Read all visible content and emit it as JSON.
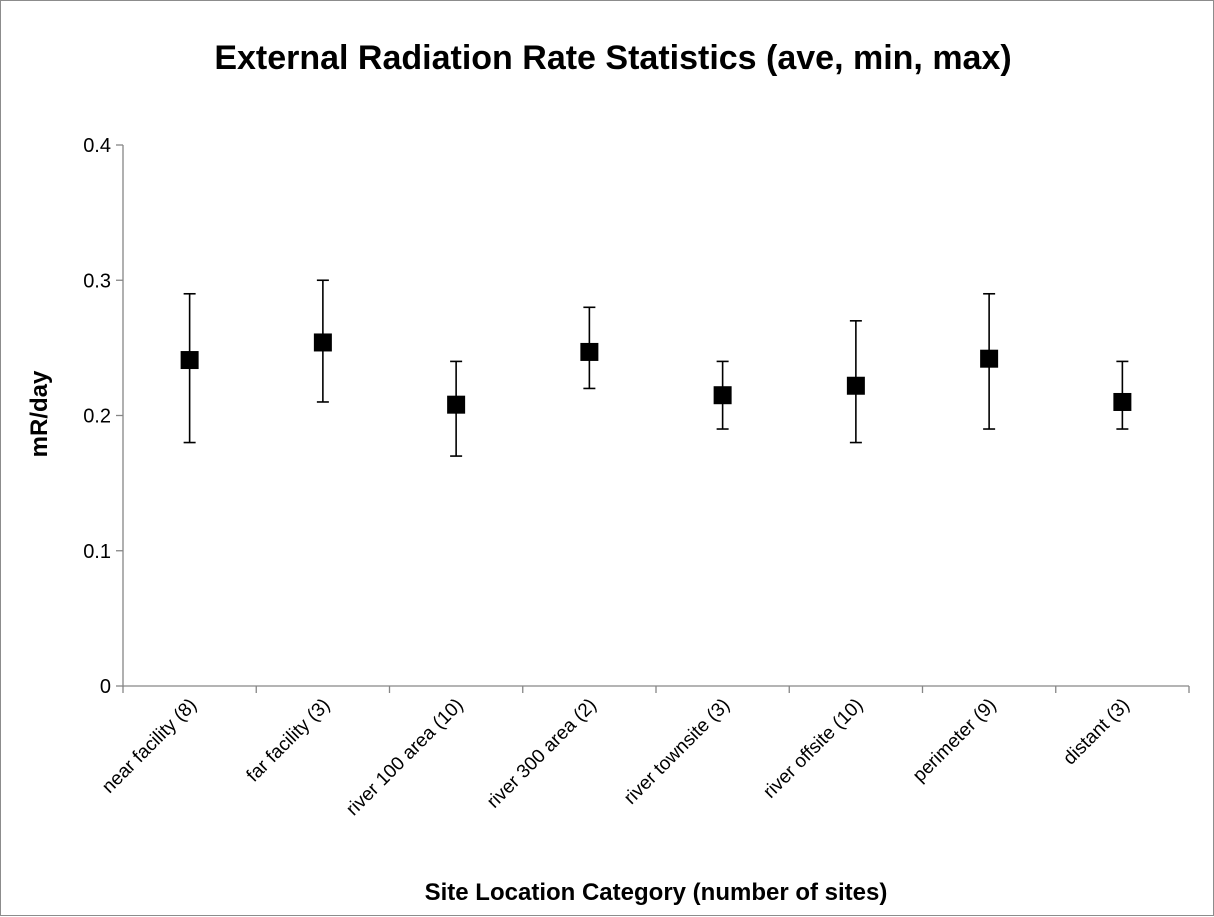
{
  "chart_data": {
    "type": "scatter",
    "title": "External Radiation Rate Statistics (ave, min, max)",
    "xlabel": "Site Location Category (number of sites)",
    "ylabel": "mR/day",
    "ylim": [
      0,
      0.4
    ],
    "yticks": [
      "0",
      "0.1",
      "0.2",
      "0.3",
      "0.4"
    ],
    "ytick_values": [
      0,
      0.1,
      0.2,
      0.3,
      0.4
    ],
    "grid": false,
    "legend": "none",
    "marker": "square",
    "marker_color": "#000000",
    "categories": [
      "near facility (8)",
      "far facility (3)",
      "river 100 area (10)",
      "river 300 area (2)",
      "river townsite (3)",
      "river offsite (10)",
      "perimeter (9)",
      "distant (3)"
    ],
    "series": [
      {
        "values": [
          0.241,
          0.254,
          0.208,
          0.247,
          0.215,
          0.222,
          0.242,
          0.21
        ]
      }
    ],
    "error_min": [
      0.18,
      0.21,
      0.17,
      0.22,
      0.19,
      0.18,
      0.19,
      0.19
    ],
    "error_max": [
      0.29,
      0.3,
      0.24,
      0.28,
      0.24,
      0.27,
      0.29,
      0.24
    ]
  }
}
